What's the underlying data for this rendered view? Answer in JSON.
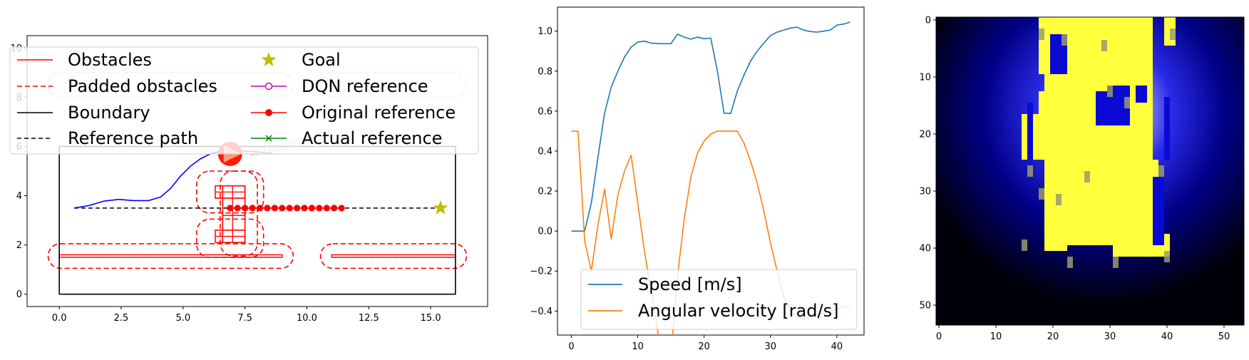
{
  "colors": {
    "obstacle": "#ff0000",
    "boundary": "#000000",
    "trajectory": "#0000ff",
    "goal": "#bfbf00",
    "dqn": "#bf00bf",
    "actual": "#008000",
    "speed": "#1f77b4",
    "angular": "#ff7f0e"
  },
  "chart_data": [
    {
      "type": "scatter",
      "xlim": [
        -1.3,
        17.3
      ],
      "ylim": [
        -0.5,
        10.5
      ],
      "x_ticks": [
        "0.0",
        "2.5",
        "5.0",
        "7.5",
        "10.0",
        "12.5",
        "15.0"
      ],
      "y_ticks": [
        "0",
        "2",
        "4",
        "6",
        "8",
        "10"
      ],
      "legend": {
        "placement": "top-left",
        "items": [
          {
            "label": "Obstacles",
            "style": "red-solid"
          },
          {
            "label": "Padded obstacles",
            "style": "red-dashed"
          },
          {
            "label": "Boundary",
            "style": "black-solid"
          },
          {
            "label": "Reference path",
            "style": "black-dashed"
          },
          {
            "label": "Goal",
            "style": "olive-star"
          },
          {
            "label": "DQN reference",
            "style": "magenta-circle-line"
          },
          {
            "label": "Original reference",
            "style": "red-dot-line"
          },
          {
            "label": "Actual reference",
            "style": "green-x-line"
          }
        ]
      },
      "boundary": [
        [
          0,
          0
        ],
        [
          16,
          0
        ],
        [
          16,
          6
        ],
        [
          0,
          6
        ],
        [
          0,
          0
        ]
      ],
      "obstacles": [
        {
          "name": "left-wall",
          "x0": 0,
          "x1": 9,
          "y0": 1.5,
          "y1": 1.6
        },
        {
          "name": "right-wall",
          "x0": 11,
          "x1": 16,
          "y0": 1.5,
          "y1": 1.6
        },
        {
          "name": "block-top",
          "x0": 6.3,
          "x1": 7.5,
          "y0": 3.9,
          "y1": 4.4
        },
        {
          "name": "block-bottom",
          "x0": 6.3,
          "x1": 7.5,
          "y0": 2.1,
          "y1": 2.6
        },
        {
          "name": "block-stem",
          "x0": 6.6,
          "x1": 7.5,
          "y0": 2.1,
          "y1": 4.4
        }
      ],
      "padded_obstacles": [
        {
          "x0": -0.45,
          "x1": 9.45,
          "y0": 1.05,
          "y1": 2.05
        },
        {
          "x0": 10.55,
          "x1": 16.45,
          "y0": 1.05,
          "y1": 2.05
        },
        {
          "x0": 5.55,
          "x1": 8.25,
          "y0": 3.3,
          "y1": 5.0
        },
        {
          "x0": 5.55,
          "x1": 8.25,
          "y0": 1.5,
          "y1": 3.05
        },
        {
          "x0": 6.5,
          "x1": 8.0,
          "y0": 1.55,
          "y1": 5.0
        }
      ],
      "padded_obstacles_ghost": [
        {
          "x0": -0.45,
          "x1": 9.45,
          "y0": 8.0,
          "y1": 9.0
        },
        {
          "x0": 10.55,
          "x1": 16.45,
          "y0": 8.0,
          "y1": 9.0
        }
      ],
      "reference_path": {
        "x": [
          0.6,
          15.4
        ],
        "y": [
          3.5,
          3.5
        ]
      },
      "trajectory": {
        "x": [
          0.6,
          1.2,
          1.8,
          2.4,
          3.0,
          3.6,
          4.1,
          4.5,
          4.9,
          5.3,
          5.7,
          6.1,
          6.5,
          6.9,
          7.3,
          7.8,
          8.3,
          8.6
        ],
        "y": [
          3.5,
          3.6,
          3.78,
          3.85,
          3.8,
          3.8,
          3.95,
          4.3,
          4.8,
          5.2,
          5.5,
          5.7,
          5.8,
          5.82,
          5.82,
          5.8,
          5.75,
          5.72
        ]
      },
      "original_reference": {
        "x": [
          6.9,
          7.2,
          7.5,
          7.8,
          8.1,
          8.4,
          8.7,
          9.0,
          9.3,
          9.6,
          9.9,
          10.2,
          10.5,
          10.8,
          11.1,
          11.4
        ],
        "y": [
          3.5,
          3.5,
          3.5,
          3.5,
          3.5,
          3.5,
          3.5,
          3.5,
          3.5,
          3.5,
          3.5,
          3.5,
          3.5,
          3.5,
          3.5,
          3.5
        ]
      },
      "actual_reference": {
        "x": [
          7.8,
          8.0,
          8.2,
          8.4,
          8.6,
          8.8,
          9.0,
          9.2,
          9.4,
          9.6,
          9.8,
          10.0,
          10.2,
          10.4,
          10.6,
          10.8,
          11.0
        ],
        "y": [
          5.78,
          5.8,
          5.83,
          5.86,
          5.9,
          5.94,
          5.98,
          6.02,
          6.08,
          6.13,
          6.19,
          6.25,
          6.31,
          6.38,
          6.45,
          6.52,
          6.6
        ]
      },
      "goal": {
        "x": 15.4,
        "y": 3.5
      },
      "robot": {
        "x": 6.9,
        "y": 5.7,
        "heading_deg": 0
      }
    },
    {
      "type": "line",
      "xlim": [
        -2.1,
        44.1
      ],
      "ylim": [
        -0.52,
        1.12
      ],
      "x_ticks": [
        "0",
        "10",
        "20",
        "30",
        "40"
      ],
      "y_ticks": [
        "−0.4",
        "−0.2",
        "0.0",
        "0.2",
        "0.4",
        "0.6",
        "0.8",
        "1.0"
      ],
      "legend": {
        "placement": "lower-left"
      },
      "series": [
        {
          "name": "Speed [m/s]",
          "values": [
            0,
            0,
            0,
            0.14,
            0.37,
            0.59,
            0.72,
            0.8,
            0.87,
            0.92,
            0.945,
            0.95,
            0.94,
            0.938,
            0.937,
            0.937,
            0.985,
            0.97,
            0.96,
            0.97,
            0.962,
            0.965,
            0.8,
            0.59,
            0.588,
            0.7,
            0.78,
            0.85,
            0.9,
            0.94,
            0.978,
            0.995,
            1.005,
            1.015,
            1.02,
            1.005,
            0.998,
            0.995,
            1.0,
            1.005,
            1.03,
            1.035,
            1.045
          ]
        },
        {
          "name": "Angular velocity [rad/s]",
          "values": [
            0.5,
            0.5,
            -0.05,
            -0.2,
            0.03,
            0.21,
            -0.04,
            0.18,
            0.3,
            0.38,
            0.14,
            -0.1,
            -0.3,
            -0.5,
            -0.72,
            -0.62,
            -0.22,
            0.06,
            0.27,
            0.39,
            0.45,
            0.485,
            0.5,
            0.5,
            0.5,
            0.5,
            0.44,
            0.35,
            0.24,
            0.1,
            -0.06,
            -0.2,
            -0.33,
            -0.4,
            -0.43,
            -0.44,
            -0.43,
            -0.42,
            -0.41,
            -0.4,
            -0.39,
            -0.38,
            -0.375
          ]
        }
      ]
    },
    {
      "type": "heatmap",
      "xlim": [
        -0.5,
        53.5
      ],
      "ylim": [
        53.5,
        -0.5
      ],
      "x_ticks": [
        "0",
        "10",
        "20",
        "30",
        "40",
        "50"
      ],
      "y_ticks": [
        "0",
        "10",
        "20",
        "30",
        "40",
        "50"
      ],
      "grid_size": 54,
      "colormap": "black-blue-white-yellow",
      "glow_center": [
        29,
        16
      ],
      "yellow_regions": [
        [
          18,
          38,
          0,
          10
        ],
        [
          19,
          30,
          10,
          27
        ],
        [
          26,
          37,
          10,
          12
        ],
        [
          26,
          29,
          12,
          16
        ],
        [
          37,
          38,
          10,
          25
        ],
        [
          23,
          37,
          12,
          40
        ],
        [
          19,
          23,
          27,
          41
        ],
        [
          37,
          39,
          25,
          42
        ],
        [
          31,
          41,
          38,
          42
        ],
        [
          40,
          42,
          0,
          5
        ],
        [
          15,
          18,
          17,
          25
        ],
        [
          18,
          19,
          13,
          25
        ]
      ],
      "blue_regions": [
        [
          30,
          34,
          12,
          19
        ],
        [
          28,
          30,
          13,
          19
        ],
        [
          35,
          37,
          12,
          15
        ],
        [
          16,
          17,
          15,
          25
        ],
        [
          20,
          23,
          3,
          10
        ],
        [
          40,
          41,
          14,
          25
        ],
        [
          38,
          40,
          28,
          40
        ]
      ]
    }
  ]
}
